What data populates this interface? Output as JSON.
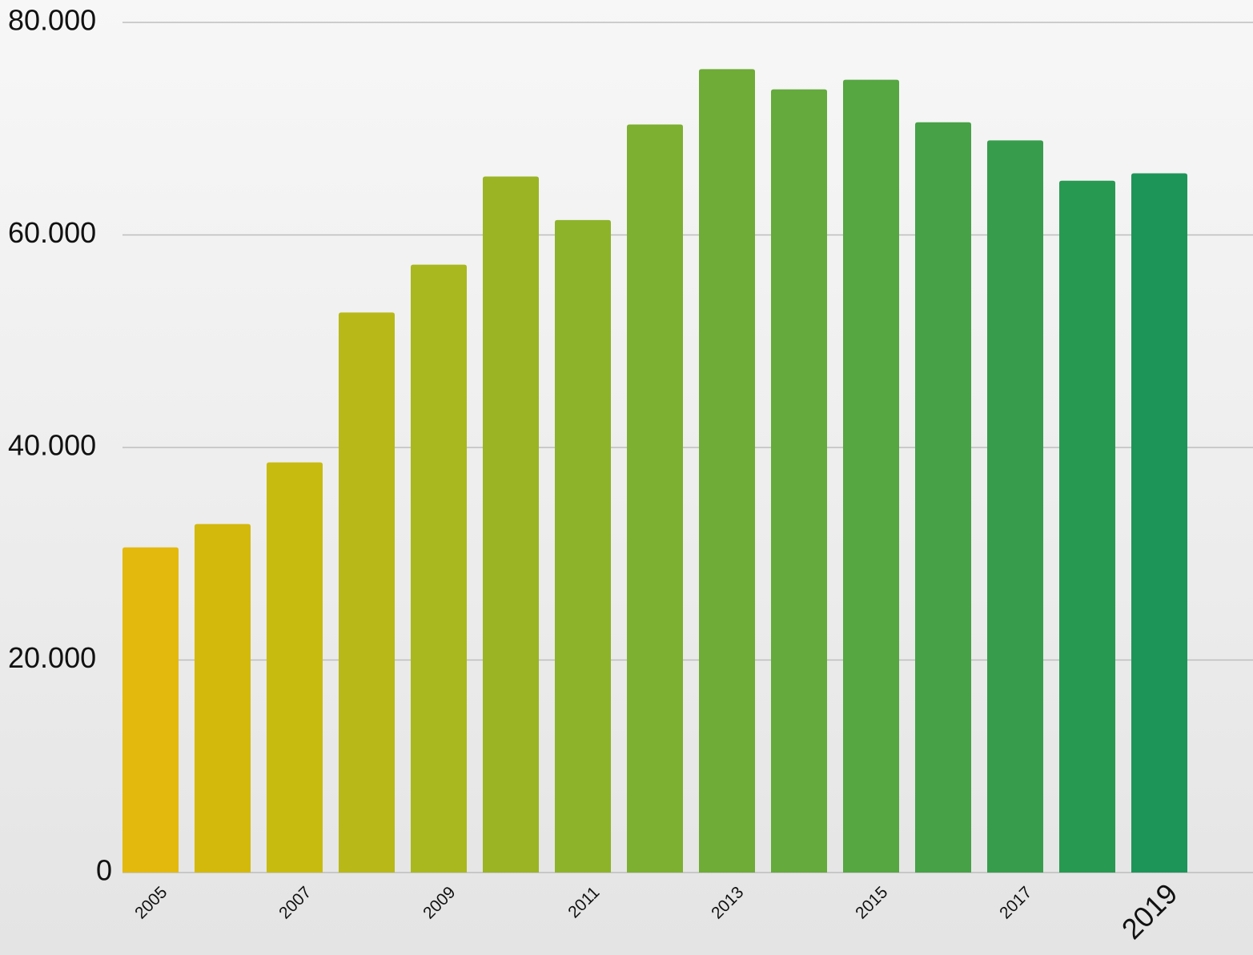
{
  "chart_data": {
    "type": "bar",
    "categories": [
      "2005",
      null,
      "2007",
      null,
      "2009",
      null,
      "2011",
      null,
      "2013",
      null,
      "2015",
      null,
      "2017",
      null,
      "2019"
    ],
    "values": [
      30600,
      32800,
      38600,
      52700,
      57200,
      65500,
      61400,
      70400,
      75600,
      73700,
      74600,
      70600,
      68900,
      65100,
      65800
    ],
    "colors": [
      "#e3b90d",
      "#d3b90c",
      "#c8bb10",
      "#b8b819",
      "#a9b81e",
      "#9ab424",
      "#8db32b",
      "#7daf31",
      "#6fab37",
      "#64aa3c",
      "#56a642",
      "#46a147",
      "#379d4c",
      "#289951",
      "#1d9559"
    ],
    "ylim": [
      0,
      80000
    ],
    "yticks": [
      0,
      {
        "value": 20000,
        "label": "20.000"
      },
      {
        "value": 40000,
        "label": "40.000"
      },
      {
        "value": 60000,
        "label": "60.000"
      },
      {
        "value": 80000,
        "label": "80.000"
      }
    ],
    "grid": true
  }
}
